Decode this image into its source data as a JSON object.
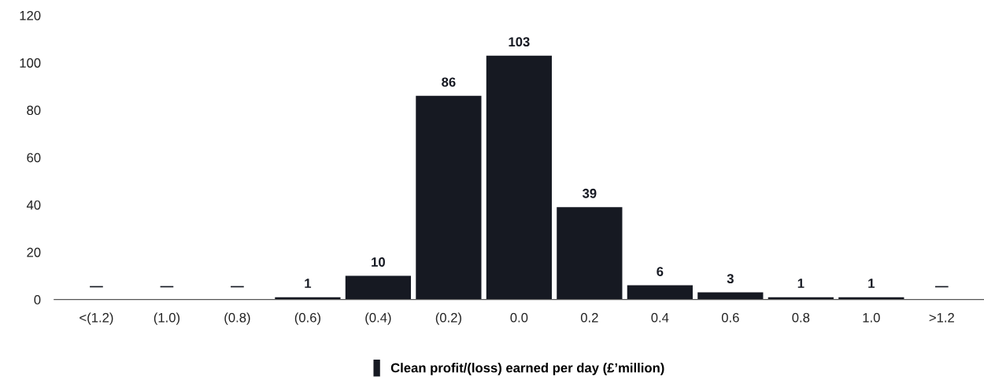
{
  "chart_data": {
    "type": "bar",
    "categories": [
      "<(1.2)",
      "(1.0)",
      "(0.8)",
      "(0.6)",
      "(0.4)",
      "(0.2)",
      "0.0",
      "0.2",
      "0.4",
      "0.6",
      "0.8",
      "1.0",
      ">1.2"
    ],
    "series": [
      {
        "name": "Clean profit/(loss) earned per day (£’million)",
        "color": "#161922",
        "values": [
          0,
          0,
          0,
          1,
          10,
          86,
          103,
          39,
          6,
          3,
          1,
          1,
          0
        ],
        "value_labels": [
          "—",
          "—",
          "—",
          "1",
          "10",
          "86",
          "103",
          "39",
          "6",
          "3",
          "1",
          "1",
          "—"
        ]
      }
    ],
    "ylim": [
      0,
      120
    ],
    "yticks": [
      0,
      20,
      40,
      60,
      80,
      100,
      120
    ],
    "grid": false,
    "legend": "bottom"
  }
}
